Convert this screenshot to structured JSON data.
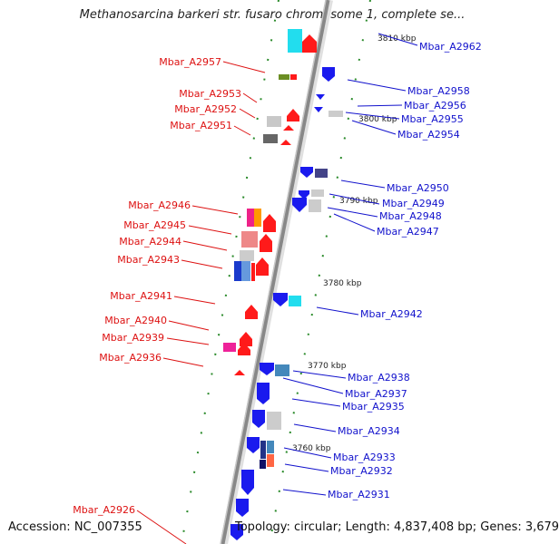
{
  "title": "Methanosarcina barkeri str. fusaro chromosome 1, complete se...",
  "accession": "Accession: NC_007355",
  "topology": "Topology: circular; Length: 4,837,408 bp; Genes: 3,679",
  "scale_labels": [
    "3810 kbp",
    "3800 kbp",
    "3790 kbp",
    "3780 kbp",
    "3770 kbp",
    "3760 kbp"
  ],
  "genes_left": [
    "Mbar_A2957",
    "Mbar_A2953",
    "Mbar_A2952",
    "Mbar_A2951",
    "Mbar_A2946",
    "Mbar_A2945",
    "Mbar_A2944",
    "Mbar_A2943",
    "Mbar_A2941",
    "Mbar_A2940",
    "Mbar_A2939",
    "Mbar_A2936",
    "Mbar_A2926"
  ],
  "genes_right": [
    "Mbar_A2962",
    "Mbar_A2958",
    "Mbar_A2956",
    "Mbar_A2955",
    "Mbar_A2954",
    "Mbar_A2950",
    "Mbar_A2949",
    "Mbar_A2948",
    "Mbar_A2947",
    "Mbar_A2942",
    "Mbar_A2938",
    "Mbar_A2937",
    "Mbar_A2935",
    "Mbar_A2934",
    "Mbar_A2933",
    "Mbar_A2932",
    "Mbar_A2931"
  ],
  "colors": {
    "forward_strand": "#ff2020",
    "reverse_strand": "#2020ee",
    "left_label": "#dd1111",
    "right_label": "#1111cc",
    "backbone": "#888888",
    "tick": "#228822"
  }
}
